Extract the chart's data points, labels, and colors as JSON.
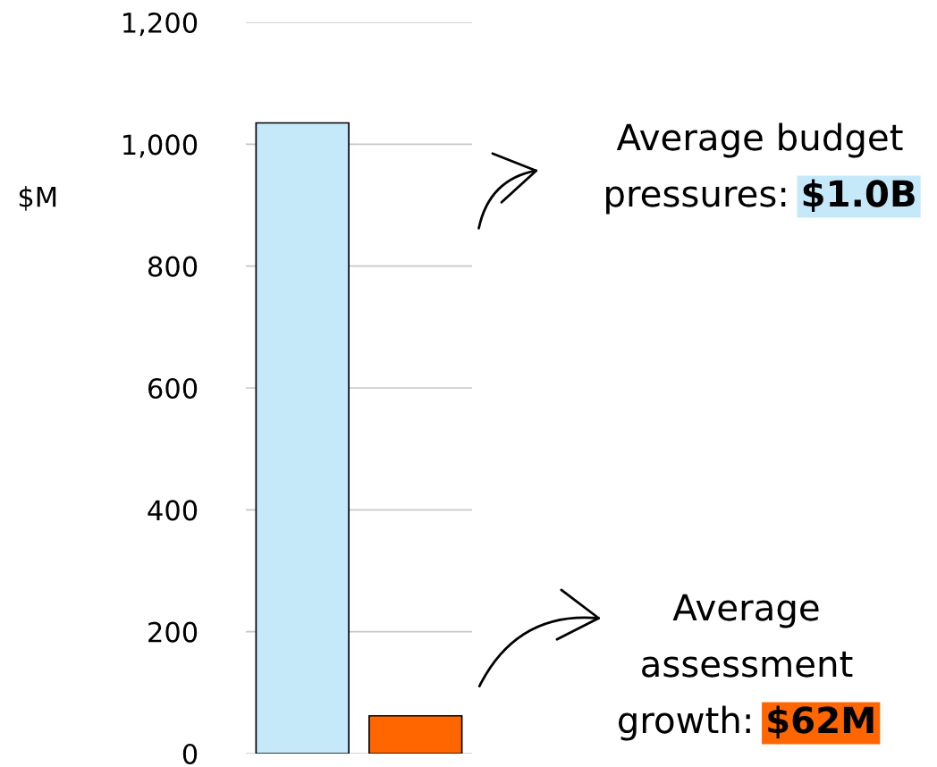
{
  "chart_data": {
    "type": "bar",
    "categories": [
      null,
      null
    ],
    "values": [
      1035,
      62
    ],
    "colors": [
      "#c5e9f9",
      "#ff6600"
    ],
    "ylabel": "$M",
    "ylim": [
      0,
      1200
    ],
    "yticks": [
      0,
      200,
      400,
      600,
      800,
      {
        "value": 1000,
        "label": "1,000"
      },
      {
        "value": 1200,
        "label": "1,200"
      }
    ],
    "grid": "y",
    "annotations": [
      "Average budget\npressures: $1.0B",
      "Average\nassessment\ngrowth: $62M"
    ]
  }
}
